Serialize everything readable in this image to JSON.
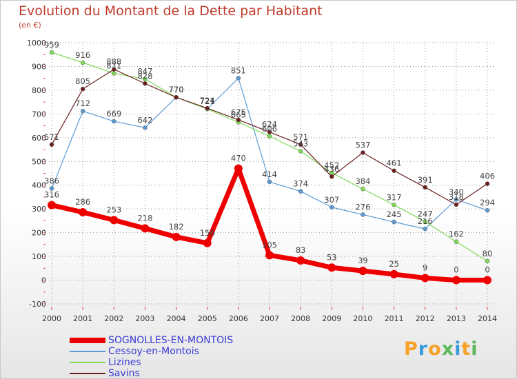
{
  "header": {
    "title": "Evolution du Montant de la Dette par Habitant",
    "unit": "(en €)"
  },
  "logo": {
    "text": "Proxiti"
  },
  "colors": {
    "title": "#c0392b",
    "grid": "#999999",
    "legend_text": "#3b3bd6"
  },
  "chart_data": {
    "type": "line",
    "title": "Evolution du Montant de la Dette par Habitant",
    "ylabel": "(en €)",
    "xlabel": "",
    "ylim": [
      -100,
      1000
    ],
    "yticks": [
      -100,
      0,
      100,
      200,
      300,
      400,
      500,
      600,
      700,
      800,
      900,
      1000
    ],
    "grid": true,
    "legend_position": "bottom-left",
    "x": [
      "2000",
      "2001",
      "2002",
      "2003",
      "2004",
      "2005",
      "2006",
      "2007",
      "2008",
      "2009",
      "2010",
      "2011",
      "2012",
      "2013",
      "2014"
    ],
    "series": [
      {
        "name": "SOGNOLLES-EN-MONTOIS",
        "color": "#ee0000",
        "highlight": true,
        "values": [
          316,
          286,
          253,
          218,
          182,
          156,
          470,
          105,
          83,
          53,
          39,
          25,
          9,
          0,
          0
        ]
      },
      {
        "name": "Cessoy-en-Montois",
        "color": "#5b9bd5",
        "highlight": false,
        "values": [
          386,
          712,
          669,
          642,
          770,
          721,
          851,
          414,
          374,
          307,
          276,
          245,
          216,
          340,
          294
        ]
      },
      {
        "name": "Lizines",
        "color": "#7ed957",
        "highlight": false,
        "values": [
          959,
          916,
          871,
          847,
          770,
          721,
          665,
          606,
          543,
          452,
          384,
          317,
          247,
          162,
          80
        ]
      },
      {
        "name": "Savins",
        "color": "#6b1f1f",
        "highlight": false,
        "values": [
          571,
          805,
          888,
          828,
          770,
          724,
          675,
          624,
          571,
          436,
          537,
          461,
          391,
          318,
          406
        ]
      }
    ]
  }
}
